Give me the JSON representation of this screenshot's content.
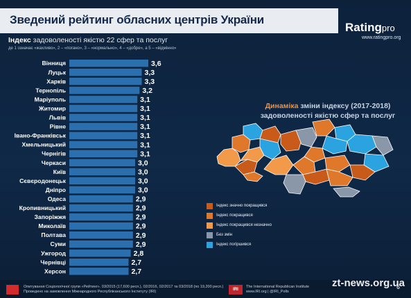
{
  "header": {
    "title": "Зведений рейтинг обласних центрів України",
    "logo_main": "Rating",
    "logo_sub": "pro",
    "logo_url": "www.ratingpro.org"
  },
  "subtitle": {
    "bold": "Індекс",
    "rest": " задоволеності якістю 22 сфер та послуг",
    "scale_note": "де 1 означає «жахливо», 2 – «погано», 3 – «нормально», 4 – «добре», а 5 – «відмінно»"
  },
  "chart_data": {
    "type": "bar",
    "orientation": "horizontal",
    "title": "Індекс задоволеності якістю 22 сфер та послуг",
    "categories": [
      "Вінниця",
      "Луцьк",
      "Харків",
      "Тернопіль",
      "Маріуполь",
      "Житомир",
      "Львів",
      "Рівне",
      "Івано-Франківськ",
      "Хмельницький",
      "Чернігів",
      "Черкаси",
      "Київ",
      "Сєвєродонецьк",
      "Дніпро",
      "Одеса",
      "Кропивницький",
      "Запоріжжя",
      "Миколаїв",
      "Полтава",
      "Суми",
      "Ужгород",
      "Чернівці",
      "Херсон"
    ],
    "values": [
      3.6,
      3.3,
      3.3,
      3.2,
      3.1,
      3.1,
      3.1,
      3.1,
      3.1,
      3.1,
      3.1,
      3.0,
      3.0,
      3.0,
      3.0,
      2.9,
      2.9,
      2.9,
      2.9,
      2.9,
      2.9,
      2.8,
      2.7,
      2.7
    ],
    "value_labels": [
      "3,6",
      "3,3",
      "3,3",
      "3,2",
      "3,1",
      "3,1",
      "3,1",
      "3,1",
      "3,1",
      "3,1",
      "3,1",
      "3,0",
      "3,0",
      "3,0",
      "3,0",
      "2,9",
      "2,9",
      "2,9",
      "2,9",
      "2,9",
      "2,9",
      "2,8",
      "2,7",
      "2,7"
    ],
    "xlim": [
      0,
      3.6
    ],
    "grid": false,
    "legend": "none",
    "bar_color": "#2b6fae"
  },
  "map": {
    "title_lead": "Динаміка",
    "title_rest": " зміни індексу (2017-2018)",
    "title_line2": "задоволеності якістю сфер та послуг",
    "legend": [
      {
        "label": "Індекс значно покращився",
        "color": "#c85a1a"
      },
      {
        "label": "Індекс покращився",
        "color": "#e0782c"
      },
      {
        "label": "Індекс покращився незначно",
        "color": "#f29a4a"
      },
      {
        "label": "Без змін",
        "color": "#8a97a8"
      },
      {
        "label": "Індекс погіршився",
        "color": "#2ba3e0"
      }
    ]
  },
  "footer": {
    "line1": "Опитування Соціологічної групи «Рейтинг». 03/2015 (17,600 респ.), 02/2016, 02/2017 та 03/2018 (по 19,200 респ.)",
    "line2": "Проведено на замовлення Міжнародного Республіканського Інституту (IRI)",
    "iri_mark": "IRI",
    "iri_line1": "The International Republican Institute",
    "iri_line2": "www.IRI.org | @IRI_Polls",
    "page": "6",
    "watermark": "zt-news.org.ua"
  }
}
